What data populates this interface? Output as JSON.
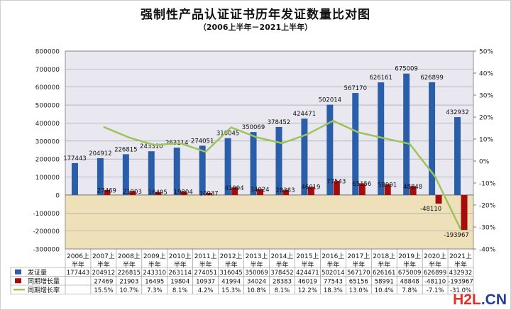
{
  "title": "强制性产品认证证书历年发证数量比对图",
  "subtitle": "（2006上半年－2021上半年）",
  "watermark": {
    "part1": "H2L",
    "part2": ".CN"
  },
  "colors": {
    "bar_blue": "#2b5ea8",
    "bar_red": "#a50d0d",
    "line_green": "#9bc45a",
    "plot_upper_bg": "#e9e8f0",
    "plot_lower_bg": "#eee0b9"
  },
  "chart_data": {
    "type": "bar+line",
    "categories": [
      "2006上半年",
      "2007上半年",
      "2008上半年",
      "2009上半年",
      "2010上半年",
      "2011上半年",
      "2012上半年",
      "2013上半年",
      "2014上半年",
      "2015上半年",
      "2016上半年",
      "2017上半年",
      "2018上半年",
      "2019上半年",
      "2020上半年",
      "2021上半年"
    ],
    "y_left": {
      "min": -300000,
      "max": 800000,
      "step": 100000,
      "ticks": [
        "800000",
        "700000",
        "600000",
        "500000",
        "400000",
        "300000",
        "200000",
        "100000",
        "0",
        "-100000",
        "-200000",
        "-300000"
      ]
    },
    "y_right": {
      "min": -40,
      "max": 50,
      "step": 10,
      "ticks": [
        "50%",
        "40%",
        "30%",
        "20%",
        "10%",
        "0%",
        "-10%",
        "-20%",
        "-30%",
        "-40%"
      ]
    },
    "series": [
      {
        "name": "发证量",
        "type": "bar",
        "axis": "left",
        "values": [
          177443,
          204912,
          226815,
          243310,
          263114,
          274051,
          316045,
          350069,
          378452,
          424471,
          502014,
          567170,
          626161,
          675009,
          626899,
          432932
        ],
        "table": [
          "177443",
          "204912",
          "226815",
          "243310",
          "263114",
          "274051",
          "316045",
          "350069",
          "378452",
          "424471",
          "502014",
          "567170",
          "626161",
          "675009",
          "626899",
          "432932"
        ]
      },
      {
        "name": "同期增长量",
        "type": "bar",
        "axis": "left",
        "values": [
          null,
          27469,
          21903,
          16495,
          19804,
          10937,
          41994,
          34024,
          28383,
          46019,
          77543,
          65156,
          58991,
          48848,
          -48110,
          -193967
        ],
        "table": [
          "",
          "27469",
          "21903",
          "16495",
          "19804",
          "10937",
          "41994",
          "34024",
          "28383",
          "46019",
          "77543",
          "65156",
          "58991",
          "48848",
          "-48110",
          "-193967"
        ]
      },
      {
        "name": "同期增长率",
        "type": "line",
        "axis": "right",
        "values": [
          null,
          15.5,
          10.7,
          7.3,
          8.1,
          4.2,
          15.3,
          10.8,
          8.1,
          12.2,
          18.3,
          13.0,
          10.4,
          7.8,
          -7.1,
          -31.0
        ],
        "table": [
          "",
          "15.5%",
          "10.7%",
          "7.3%",
          "8.1%",
          "4.2%",
          "15.3%",
          "10.8%",
          "8.1%",
          "12.2%",
          "18.3%",
          "13.0%",
          "10.4%",
          "7.8%",
          "-7.1%",
          "-31.0%"
        ]
      }
    ]
  }
}
